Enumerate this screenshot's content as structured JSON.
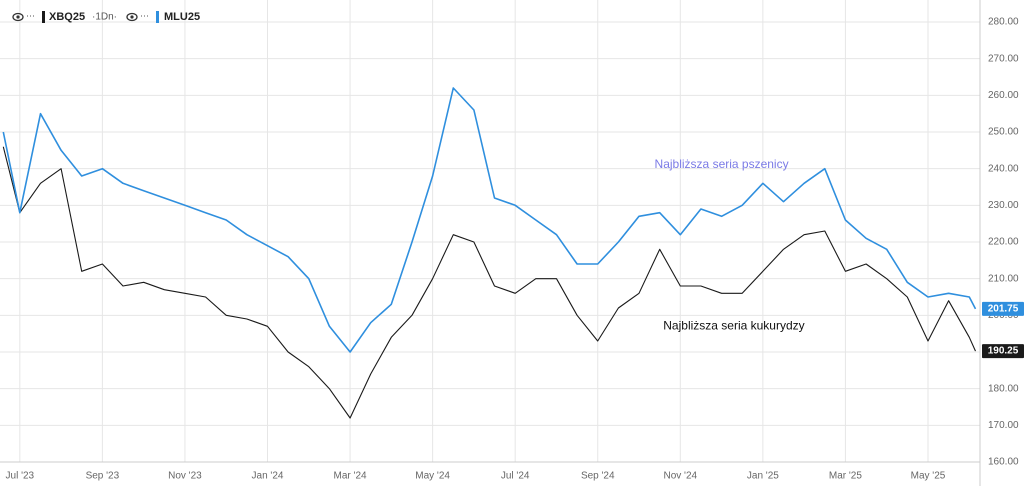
{
  "chart_data": {
    "type": "line",
    "interval": "·1Dn·",
    "x": [
      -0.4,
      0,
      0.5,
      1,
      1.5,
      2,
      2.5,
      3,
      3.5,
      4,
      4.5,
      5,
      5.5,
      6,
      6.5,
      7,
      7.5,
      8,
      8.5,
      9,
      9.5,
      10,
      10.5,
      11,
      11.5,
      12,
      12.5,
      13,
      13.5,
      14,
      14.5,
      15,
      15.5,
      16,
      16.5,
      17,
      17.5,
      18,
      18.5,
      19,
      19.5,
      20,
      20.5,
      21,
      21.5,
      22,
      22.5,
      23,
      23.15
    ],
    "series": [
      {
        "name": "XBQ25",
        "color": "#1a1a1a",
        "values": [
          246,
          228,
          236,
          240,
          212,
          214,
          208,
          209,
          207,
          206,
          205,
          200,
          199,
          197,
          190,
          186,
          180,
          172,
          184,
          194,
          200,
          210,
          222,
          220,
          208,
          206,
          210,
          210,
          200,
          193,
          202,
          206,
          218,
          208,
          208,
          206,
          206,
          212,
          218,
          222,
          223,
          212,
          214,
          210,
          205,
          193,
          204,
          194,
          190.25
        ]
      },
      {
        "name": "MLU25",
        "color": "#2f8fde",
        "values": [
          250,
          228,
          255,
          245,
          238,
          240,
          236,
          234,
          232,
          230,
          228,
          226,
          222,
          219,
          216,
          210,
          197,
          190,
          198,
          203,
          220,
          238,
          262,
          256,
          232,
          230,
          226,
          222,
          214,
          214,
          220,
          227,
          228,
          222,
          229,
          227,
          230,
          236,
          231,
          236,
          240,
          226,
          221,
          218,
          209,
          205,
          206,
          205,
          201.75
        ]
      }
    ],
    "annotations": [
      {
        "text": "Najbliższa seria pszenicy",
        "series": 1,
        "x": 17,
        "y": 241,
        "color": "#7b7be6"
      },
      {
        "text": "Najbliższa seria kukurydzy",
        "series": 0,
        "x": 17.3,
        "y": 197,
        "color": "#111111"
      }
    ],
    "xlim": [
      -0.48,
      23.26
    ],
    "xticks": [
      {
        "value": 0,
        "label": "Jul '23"
      },
      {
        "value": 2,
        "label": "Sep '23"
      },
      {
        "value": 4,
        "label": "Nov '23"
      },
      {
        "value": 6,
        "label": "Jan '24"
      },
      {
        "value": 8,
        "label": "Mar '24"
      },
      {
        "value": 10,
        "label": "May '24"
      },
      {
        "value": 12,
        "label": "Jul '24"
      },
      {
        "value": 14,
        "label": "Sep '24"
      },
      {
        "value": 16,
        "label": "Nov '24"
      },
      {
        "value": 18,
        "label": "Jan '25"
      },
      {
        "value": 20,
        "label": "Mar '25"
      },
      {
        "value": 22,
        "label": "May '25"
      }
    ],
    "ylim": [
      160,
      280
    ],
    "yticks": [
      {
        "value": 160,
        "label": "160.00"
      },
      {
        "value": 170,
        "label": "170.00"
      },
      {
        "value": 180,
        "label": "180.00"
      },
      {
        "value": 190,
        "label": "190.00"
      },
      {
        "value": 200,
        "label": "200.00"
      },
      {
        "value": 210,
        "label": "210.00"
      },
      {
        "value": 220,
        "label": "220.00"
      },
      {
        "value": 230,
        "label": "230.00"
      },
      {
        "value": 240,
        "label": "240.00"
      },
      {
        "value": 250,
        "label": "250.00"
      },
      {
        "value": 260,
        "label": "260.00"
      },
      {
        "value": 270,
        "label": "270.00"
      },
      {
        "value": 280,
        "label": "280.00"
      }
    ],
    "grid": true
  }
}
